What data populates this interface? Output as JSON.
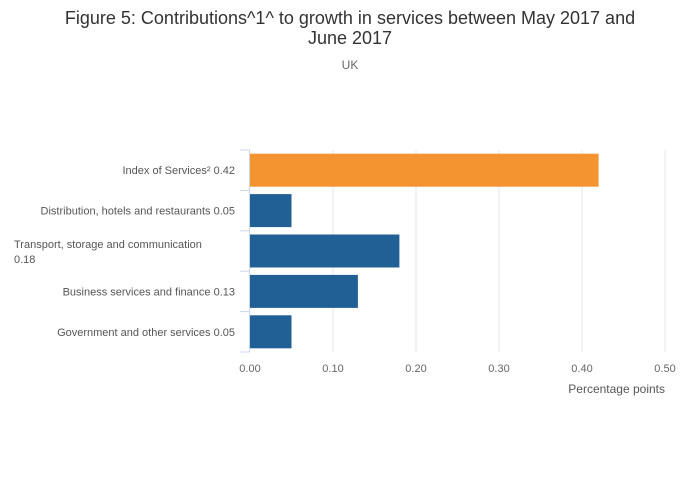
{
  "chart_data": {
    "type": "bar",
    "orientation": "horizontal",
    "title_lines": [
      "Figure 5: Contributions^1^ to growth in services between May 2017 and",
      "June 2017"
    ],
    "subtitle": "UK",
    "categories": [
      [
        "Index of Services² 0.42"
      ],
      [
        "Distribution, hotels and restaurants 0.05"
      ],
      [
        "Transport, storage and communication",
        "0.18"
      ],
      [
        "Business services and finance 0.13"
      ],
      [
        "Government and other services 0.05"
      ]
    ],
    "values": [
      0.42,
      0.05,
      0.18,
      0.13,
      0.05
    ],
    "colors": [
      "#f39431",
      "#206095",
      "#206095",
      "#206095",
      "#206095"
    ],
    "xlabel": "Percentage points",
    "xlim": [
      0,
      0.5
    ],
    "xticks": [
      "0.00",
      "0.10",
      "0.20",
      "0.30",
      "0.40",
      "0.50"
    ],
    "grid": true
  }
}
